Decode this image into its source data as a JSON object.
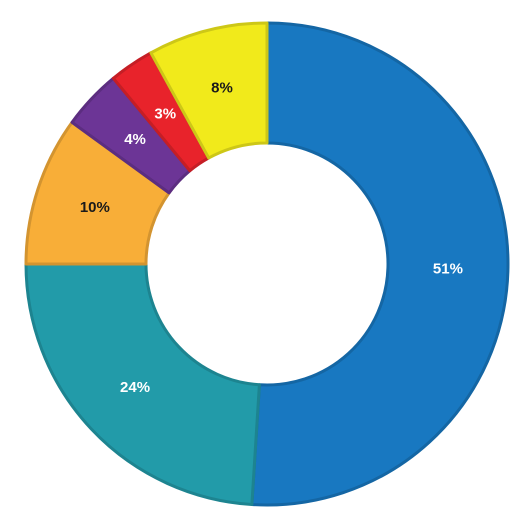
{
  "chart_data": {
    "type": "donut",
    "categories": [
      null,
      null,
      null,
      null,
      null,
      null
    ],
    "values": [
      51,
      24,
      10,
      4,
      3,
      8
    ],
    "value_labels": [
      "51%",
      "24%",
      "10%",
      "4%",
      "3%",
      "8%"
    ],
    "colors": [
      "#1878c1",
      "#229ba9",
      "#f8ae38",
      "#6c3596",
      "#e8232b",
      "#f1ea1b"
    ]
  }
}
